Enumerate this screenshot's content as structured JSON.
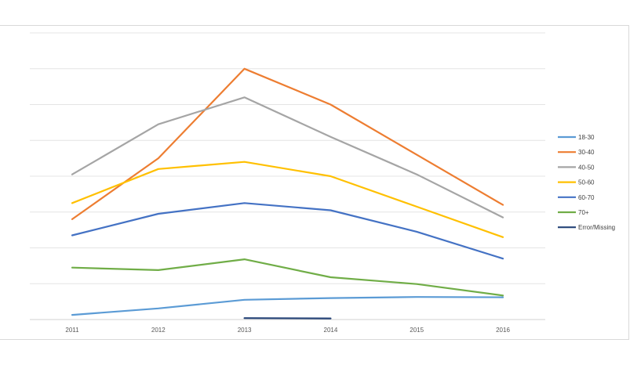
{
  "chart_data": {
    "type": "line",
    "x": [
      "2011",
      "2012",
      "2013",
      "2014",
      "2015",
      "2016"
    ],
    "ylim": [
      0,
      8
    ],
    "grid": true,
    "legend_position": "right",
    "series": [
      {
        "name": "18-30",
        "color": "#5b9bd5",
        "values": [
          0.13,
          0.31,
          0.55,
          0.6,
          0.63,
          0.62
        ]
      },
      {
        "name": "30-40",
        "color": "#ed7d31",
        "values": [
          2.8,
          4.5,
          7.0,
          6.0,
          4.6,
          3.2
        ]
      },
      {
        "name": "40-50",
        "color": "#a5a5a5",
        "values": [
          4.05,
          5.45,
          6.2,
          5.1,
          4.05,
          2.85
        ]
      },
      {
        "name": "50-60",
        "color": "#ffc000",
        "values": [
          3.25,
          4.2,
          4.4,
          4.0,
          3.15,
          2.3
        ]
      },
      {
        "name": "60-70",
        "color": "#4472c4",
        "values": [
          2.35,
          2.95,
          3.25,
          3.05,
          2.45,
          1.7
        ]
      },
      {
        "name": "70+",
        "color": "#70ad47",
        "values": [
          1.45,
          1.38,
          1.68,
          1.18,
          0.99,
          0.67
        ]
      },
      {
        "name": "Error/Missing",
        "color": "#264478",
        "values": [
          null,
          null,
          0.04,
          0.03,
          null,
          null
        ]
      }
    ]
  }
}
